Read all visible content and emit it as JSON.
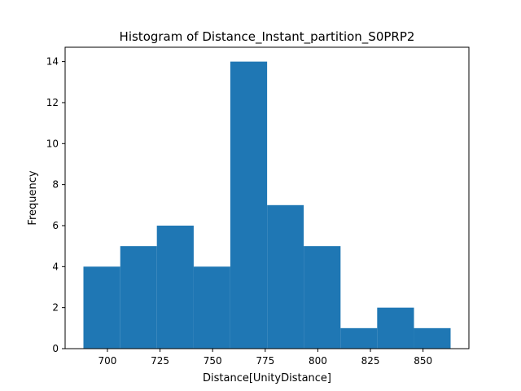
{
  "chart_data": {
    "type": "bar",
    "subtype": "histogram",
    "title": "Histogram of Distance_Instant_partition_S0PRP2",
    "xlabel": "Distance[UnityDistance]",
    "ylabel": "Frequency",
    "bins": [
      {
        "start": 688.6,
        "end": 706.1,
        "count": 4
      },
      {
        "start": 706.1,
        "end": 723.5,
        "count": 5
      },
      {
        "start": 723.5,
        "end": 741.0,
        "count": 6
      },
      {
        "start": 741.0,
        "end": 758.4,
        "count": 4
      },
      {
        "start": 758.4,
        "end": 775.9,
        "count": 14
      },
      {
        "start": 775.9,
        "end": 793.3,
        "count": 7
      },
      {
        "start": 793.3,
        "end": 810.8,
        "count": 5
      },
      {
        "start": 810.8,
        "end": 828.2,
        "count": 1
      },
      {
        "start": 828.2,
        "end": 845.7,
        "count": 2
      },
      {
        "start": 845.7,
        "end": 863.1,
        "count": 1
      }
    ],
    "xlim": [
      679.9,
      871.8
    ],
    "ylim": [
      0,
      14.7
    ],
    "xticks": [
      700,
      725,
      750,
      775,
      800,
      825,
      850
    ],
    "xtick_labels": [
      "700",
      "725",
      "750",
      "775",
      "800",
      "825",
      "850"
    ],
    "yticks": [
      0,
      2,
      4,
      6,
      8,
      10,
      12,
      14
    ],
    "ytick_labels": [
      "0",
      "2",
      "4",
      "6",
      "8",
      "10",
      "12",
      "14"
    ],
    "bar_color": "#1f77b4",
    "grid": false,
    "legend": "none"
  }
}
